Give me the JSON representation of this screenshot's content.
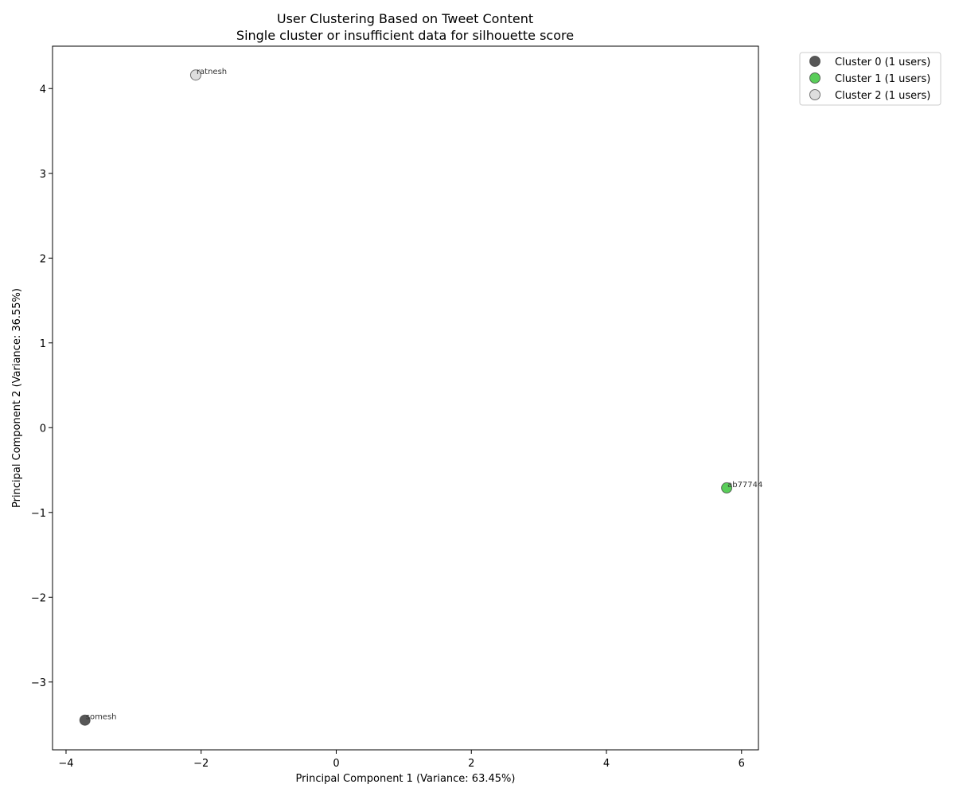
{
  "chart_data": {
    "type": "scatter",
    "title": "User Clustering Based on Tweet Content",
    "subtitle": "Single cluster or insufficient data for silhouette score",
    "xlabel": "Principal Component 1 (Variance: 63.45%)",
    "ylabel": "Principal Component 2 (Variance: 36.55%)",
    "xlim": [
      -4.2,
      6.25
    ],
    "ylim": [
      -3.8,
      4.5
    ],
    "xticks": [
      -4,
      -2,
      0,
      2,
      4,
      6
    ],
    "yticks": [
      -3,
      -2,
      -1,
      0,
      1,
      2,
      3,
      4
    ],
    "xtick_labels": [
      "−4",
      "−2",
      "0",
      "2",
      "4",
      "6"
    ],
    "ytick_labels": [
      "−3",
      "−2",
      "−1",
      "0",
      "1",
      "2",
      "3",
      "4"
    ],
    "grid": false,
    "legend_position": "outside-top-right",
    "series": [
      {
        "name": "Cluster 0 (1 users)",
        "color": "#3a3a3a",
        "points": [
          {
            "x": -3.72,
            "y": -3.45,
            "label": "somesh"
          }
        ]
      },
      {
        "name": "Cluster 1 (1 users)",
        "color": "#3cc43c",
        "points": [
          {
            "x": 5.78,
            "y": -0.71,
            "label": "ab77744"
          }
        ]
      },
      {
        "name": "Cluster 2 (1 users)",
        "color": "#d8d8d8",
        "points": [
          {
            "x": -2.08,
            "y": 4.16,
            "label": "ratnesh"
          }
        ]
      }
    ]
  }
}
